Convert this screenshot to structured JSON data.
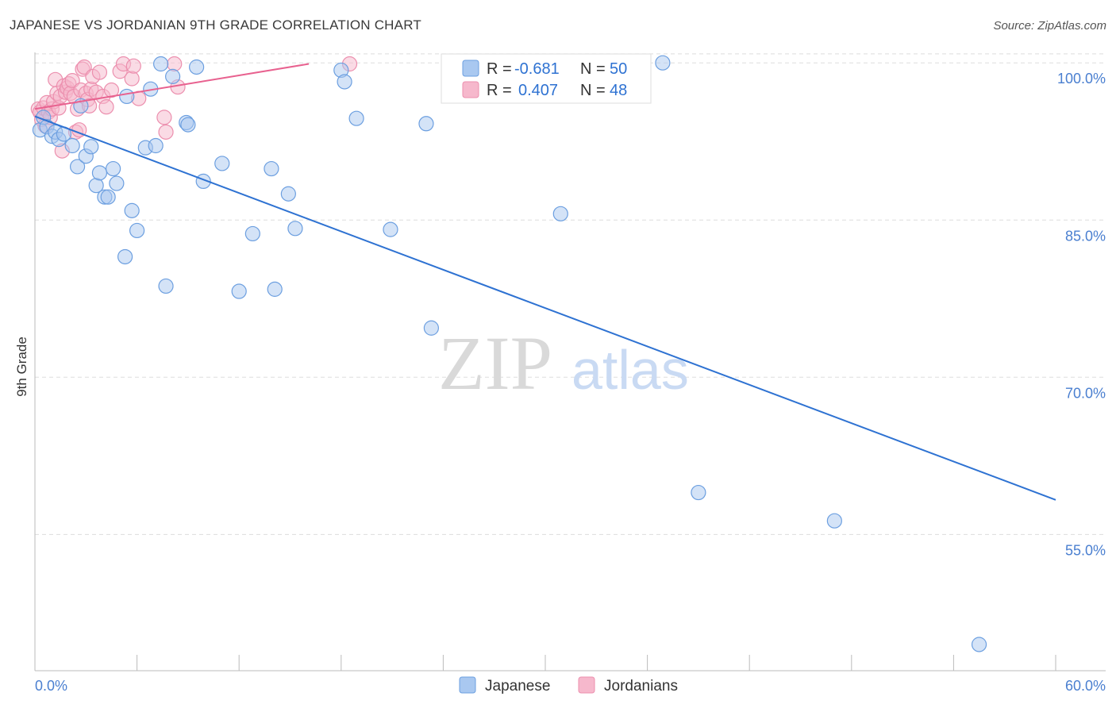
{
  "title": "JAPANESE VS JORDANIAN 9TH GRADE CORRELATION CHART",
  "source": "Source: ZipAtlas.com",
  "watermark": {
    "zip": "ZIP",
    "atlas": "atlas"
  },
  "colors": {
    "blue_fill": "#a9c8f0",
    "blue_stroke": "#6c9fe0",
    "blue_line": "#2e72d2",
    "pink_fill": "#f6b8cc",
    "pink_stroke": "#ec8fae",
    "pink_line": "#e8618f",
    "grid": "#dddddd",
    "axis": "#bbbbbb",
    "tick_text": "#4a7fd0"
  },
  "legend": {
    "rows": [
      {
        "r_label": "R =",
        "r_value": "-0.681",
        "n_label": "N =",
        "n_value": "50",
        "series": "Japanese"
      },
      {
        "r_label": "R =",
        "r_value": "0.407",
        "n_label": "N =",
        "n_value": "48",
        "series": "Jordanians"
      }
    ]
  },
  "chart_data": {
    "type": "scatter",
    "title": "JAPANESE VS JORDANIAN 9TH GRADE CORRELATION CHART",
    "xlabel": "",
    "ylabel": "9th Grade",
    "xlim": [
      0,
      60
    ],
    "ylim": [
      42,
      101
    ],
    "x_tick_labels": [
      "0.0%",
      "60.0%"
    ],
    "y_ticks": [
      55,
      70,
      85,
      100
    ],
    "y_tick_labels": [
      "55.0%",
      "70.0%",
      "85.0%",
      "100.0%"
    ],
    "grid": true,
    "legend_position": "top-center",
    "series": [
      {
        "name": "Japanese",
        "points": [
          [
            0.3,
            93.6
          ],
          [
            0.5,
            94.8
          ],
          [
            0.7,
            93.9
          ],
          [
            1.0,
            93.0
          ],
          [
            1.2,
            93.4
          ],
          [
            1.4,
            92.7
          ],
          [
            1.7,
            93.2
          ],
          [
            2.2,
            92.1
          ],
          [
            2.5,
            90.1
          ],
          [
            2.7,
            95.9
          ],
          [
            3.0,
            91.1
          ],
          [
            3.3,
            92.0
          ],
          [
            3.6,
            88.3
          ],
          [
            3.8,
            89.5
          ],
          [
            4.1,
            87.2
          ],
          [
            4.3,
            87.2
          ],
          [
            4.6,
            89.9
          ],
          [
            4.8,
            88.5
          ],
          [
            5.3,
            81.5
          ],
          [
            5.4,
            96.8
          ],
          [
            5.7,
            85.9
          ],
          [
            6.0,
            84.0
          ],
          [
            6.5,
            91.9
          ],
          [
            6.8,
            97.5
          ],
          [
            7.1,
            92.1
          ],
          [
            7.4,
            99.9
          ],
          [
            7.7,
            78.7
          ],
          [
            8.1,
            98.7
          ],
          [
            8.9,
            94.3
          ],
          [
            9.0,
            94.1
          ],
          [
            9.5,
            99.6
          ],
          [
            9.9,
            88.7
          ],
          [
            11.0,
            90.4
          ],
          [
            12.0,
            78.2
          ],
          [
            12.8,
            83.7
          ],
          [
            13.9,
            89.9
          ],
          [
            14.1,
            78.4
          ],
          [
            14.9,
            87.5
          ],
          [
            15.3,
            84.2
          ],
          [
            18.0,
            99.3
          ],
          [
            18.2,
            98.2
          ],
          [
            18.9,
            94.7
          ],
          [
            20.9,
            84.1
          ],
          [
            23.0,
            94.2
          ],
          [
            23.3,
            74.7
          ],
          [
            30.9,
            85.6
          ],
          [
            36.9,
            100.0
          ],
          [
            39.0,
            59.0
          ],
          [
            47.0,
            56.3
          ],
          [
            55.5,
            44.5
          ]
        ]
      },
      {
        "name": "Jordanians",
        "points": [
          [
            0.2,
            95.6
          ],
          [
            0.3,
            95.3
          ],
          [
            0.4,
            94.6
          ],
          [
            0.5,
            95.7
          ],
          [
            0.6,
            94.0
          ],
          [
            0.7,
            96.2
          ],
          [
            0.8,
            95.3
          ],
          [
            0.9,
            94.8
          ],
          [
            1.0,
            95.6
          ],
          [
            1.1,
            96.3
          ],
          [
            1.2,
            98.4
          ],
          [
            1.3,
            97.1
          ],
          [
            1.4,
            95.7
          ],
          [
            1.5,
            96.8
          ],
          [
            1.6,
            91.6
          ],
          [
            1.7,
            97.8
          ],
          [
            1.8,
            97.2
          ],
          [
            1.9,
            97.6
          ],
          [
            2.0,
            98.0
          ],
          [
            2.1,
            97.1
          ],
          [
            2.2,
            98.3
          ],
          [
            2.3,
            96.8
          ],
          [
            2.4,
            93.4
          ],
          [
            2.5,
            95.6
          ],
          [
            2.6,
            93.6
          ],
          [
            2.7,
            97.4
          ],
          [
            2.8,
            99.4
          ],
          [
            2.9,
            99.6
          ],
          [
            3.0,
            97.1
          ],
          [
            3.1,
            96.5
          ],
          [
            3.2,
            95.9
          ],
          [
            3.3,
            97.5
          ],
          [
            3.4,
            98.7
          ],
          [
            3.6,
            97.2
          ],
          [
            3.8,
            99.1
          ],
          [
            4.0,
            96.8
          ],
          [
            4.2,
            95.8
          ],
          [
            4.5,
            97.4
          ],
          [
            5.0,
            99.2
          ],
          [
            5.2,
            99.9
          ],
          [
            5.7,
            98.5
          ],
          [
            5.8,
            99.7
          ],
          [
            6.1,
            96.6
          ],
          [
            7.6,
            94.8
          ],
          [
            7.7,
            93.4
          ],
          [
            8.2,
            99.9
          ],
          [
            8.4,
            97.7
          ],
          [
            18.5,
            99.9
          ]
        ]
      }
    ],
    "trend_lines": [
      {
        "series": "Japanese",
        "x": [
          0,
          60
        ],
        "y": [
          94.9,
          58.3
        ]
      },
      {
        "series": "Jordanians",
        "x": [
          0,
          16.1
        ],
        "y": [
          95.6,
          99.9
        ]
      }
    ]
  }
}
